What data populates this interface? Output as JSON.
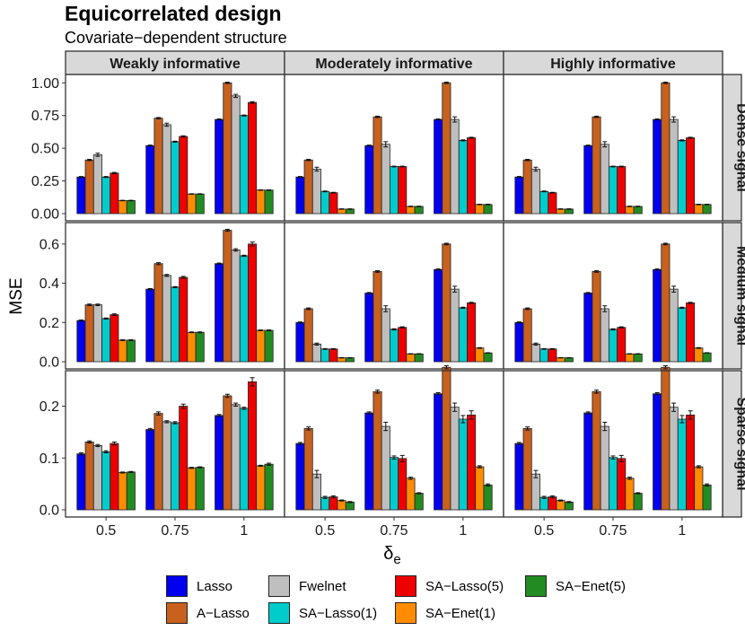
{
  "chart_data": {
    "type": "bar",
    "title": "Equicorrelated design",
    "subtitle": "Covariate−dependent structure",
    "xlabel": "δ",
    "xlabel_subscript": "e",
    "ylabel": "MSE",
    "categories": [
      "0.5",
      "0.75",
      "1"
    ],
    "columns": [
      "Weakly informative",
      "Moderately informative",
      "Highly informative"
    ],
    "rows": [
      {
        "label": "Dense signal",
        "ylim": [
          0,
          1.05
        ],
        "ticks": [
          0.0,
          0.25,
          0.5,
          0.75,
          1.0
        ],
        "tick_labels": [
          "0.00",
          "0.25",
          "0.50",
          "0.75",
          "1.00"
        ]
      },
      {
        "label": "Medium signal",
        "ylim": [
          0,
          0.7
        ],
        "ticks": [
          0.0,
          0.2,
          0.4,
          0.6
        ],
        "tick_labels": [
          "0.0",
          "0.2",
          "0.4",
          "0.6"
        ]
      },
      {
        "label": "Sparse signal",
        "ylim": [
          0,
          0.265
        ],
        "ticks": [
          0.0,
          0.1,
          0.2
        ],
        "tick_labels": [
          "0.0",
          "0.1",
          "0.2"
        ]
      }
    ],
    "series": [
      {
        "name": "Lasso",
        "color": "#0000f0"
      },
      {
        "name": "A−Lasso",
        "color": "#c8601e"
      },
      {
        "name": "Fwelnet",
        "color": "#bfbfbf"
      },
      {
        "name": "SA−Lasso(1)",
        "color": "#00cccc"
      },
      {
        "name": "SA−Lasso(5)",
        "color": "#ee0000"
      },
      {
        "name": "SA−Enet(1)",
        "color": "#ff8c00"
      },
      {
        "name": "SA−Enet(5)",
        "color": "#228b22"
      }
    ],
    "panels": [
      [
        {
          "values": [
            [
              0.28,
              0.41,
              0.45,
              0.28,
              0.31,
              0.1,
              0.1
            ],
            [
              0.52,
              0.73,
              0.68,
              0.55,
              0.59,
              0.15,
              0.15
            ],
            [
              0.72,
              1.0,
              0.9,
              0.75,
              0.85,
              0.18,
              0.18
            ]
          ],
          "errors": [
            [
              0.004,
              0.005,
              0.012,
              0.004,
              0.005,
              0.002,
              0.002
            ],
            [
              0.004,
              0.005,
              0.012,
              0.004,
              0.005,
              0.002,
              0.002
            ],
            [
              0.004,
              0.005,
              0.012,
              0.004,
              0.006,
              0.002,
              0.002
            ]
          ]
        },
        {
          "values": [
            [
              0.28,
              0.41,
              0.34,
              0.17,
              0.16,
              0.035,
              0.035
            ],
            [
              0.52,
              0.74,
              0.53,
              0.36,
              0.36,
              0.055,
              0.055
            ],
            [
              0.72,
              1.0,
              0.72,
              0.56,
              0.58,
              0.07,
              0.07
            ]
          ],
          "errors": [
            [
              0.004,
              0.005,
              0.015,
              0.003,
              0.003,
              0.002,
              0.002
            ],
            [
              0.004,
              0.005,
              0.02,
              0.003,
              0.003,
              0.002,
              0.002
            ],
            [
              0.004,
              0.005,
              0.02,
              0.004,
              0.004,
              0.002,
              0.002
            ]
          ]
        },
        {
          "values": [
            [
              0.28,
              0.41,
              0.34,
              0.17,
              0.16,
              0.035,
              0.035
            ],
            [
              0.52,
              0.74,
              0.53,
              0.36,
              0.36,
              0.055,
              0.055
            ],
            [
              0.72,
              1.0,
              0.72,
              0.56,
              0.58,
              0.07,
              0.07
            ]
          ],
          "errors": [
            [
              0.004,
              0.005,
              0.015,
              0.003,
              0.003,
              0.002,
              0.002
            ],
            [
              0.004,
              0.005,
              0.02,
              0.003,
              0.003,
              0.002,
              0.002
            ],
            [
              0.004,
              0.005,
              0.02,
              0.004,
              0.004,
              0.002,
              0.002
            ]
          ]
        }
      ],
      [
        {
          "values": [
            [
              0.21,
              0.29,
              0.29,
              0.22,
              0.24,
              0.11,
              0.11
            ],
            [
              0.37,
              0.5,
              0.44,
              0.38,
              0.43,
              0.15,
              0.15
            ],
            [
              0.5,
              0.67,
              0.57,
              0.54,
              0.6,
              0.16,
              0.16
            ]
          ],
          "errors": [
            [
              0.003,
              0.004,
              0.004,
              0.003,
              0.004,
              0.002,
              0.002
            ],
            [
              0.003,
              0.005,
              0.005,
              0.003,
              0.005,
              0.002,
              0.002
            ],
            [
              0.003,
              0.005,
              0.006,
              0.003,
              0.01,
              0.002,
              0.002
            ]
          ]
        },
        {
          "values": [
            [
              0.2,
              0.27,
              0.09,
              0.065,
              0.065,
              0.02,
              0.02
            ],
            [
              0.35,
              0.46,
              0.27,
              0.165,
              0.175,
              0.04,
              0.04
            ],
            [
              0.47,
              0.6,
              0.37,
              0.275,
              0.3,
              0.07,
              0.045
            ]
          ],
          "errors": [
            [
              0.003,
              0.004,
              0.005,
              0.002,
              0.002,
              0.001,
              0.001
            ],
            [
              0.003,
              0.004,
              0.015,
              0.003,
              0.003,
              0.001,
              0.001
            ],
            [
              0.003,
              0.004,
              0.015,
              0.003,
              0.003,
              0.002,
              0.001
            ]
          ]
        },
        {
          "values": [
            [
              0.2,
              0.27,
              0.09,
              0.065,
              0.065,
              0.02,
              0.02
            ],
            [
              0.35,
              0.46,
              0.27,
              0.165,
              0.175,
              0.04,
              0.04
            ],
            [
              0.47,
              0.6,
              0.37,
              0.275,
              0.3,
              0.07,
              0.045
            ]
          ],
          "errors": [
            [
              0.003,
              0.004,
              0.005,
              0.002,
              0.002,
              0.001,
              0.001
            ],
            [
              0.003,
              0.004,
              0.015,
              0.003,
              0.003,
              0.001,
              0.001
            ],
            [
              0.003,
              0.004,
              0.015,
              0.003,
              0.003,
              0.002,
              0.001
            ]
          ]
        }
      ],
      [
        {
          "values": [
            [
              0.108,
              0.131,
              0.124,
              0.112,
              0.128,
              0.072,
              0.073
            ],
            [
              0.155,
              0.186,
              0.17,
              0.168,
              0.2,
              0.081,
              0.082
            ],
            [
              0.182,
              0.22,
              0.203,
              0.196,
              0.247,
              0.085,
              0.088
            ]
          ],
          "errors": [
            [
              0.002,
              0.002,
              0.002,
              0.002,
              0.003,
              0.001,
              0.001
            ],
            [
              0.002,
              0.003,
              0.002,
              0.002,
              0.004,
              0.001,
              0.001
            ],
            [
              0.002,
              0.003,
              0.003,
              0.002,
              0.008,
              0.001,
              0.002
            ]
          ]
        },
        {
          "values": [
            [
              0.128,
              0.157,
              0.069,
              0.024,
              0.025,
              0.018,
              0.015
            ],
            [
              0.187,
              0.228,
              0.161,
              0.101,
              0.099,
              0.061,
              0.032
            ],
            [
              0.224,
              0.275,
              0.198,
              0.175,
              0.183,
              0.083,
              0.048
            ]
          ],
          "errors": [
            [
              0.002,
              0.003,
              0.007,
              0.002,
              0.002,
              0.001,
              0.001
            ],
            [
              0.002,
              0.003,
              0.008,
              0.003,
              0.006,
              0.002,
              0.001
            ],
            [
              0.002,
              0.003,
              0.008,
              0.007,
              0.008,
              0.002,
              0.002
            ]
          ]
        },
        {
          "values": [
            [
              0.128,
              0.157,
              0.069,
              0.024,
              0.025,
              0.018,
              0.015
            ],
            [
              0.187,
              0.228,
              0.161,
              0.101,
              0.099,
              0.061,
              0.032
            ],
            [
              0.224,
              0.275,
              0.198,
              0.175,
              0.183,
              0.083,
              0.048
            ]
          ],
          "errors": [
            [
              0.002,
              0.003,
              0.007,
              0.002,
              0.002,
              0.001,
              0.001
            ],
            [
              0.002,
              0.003,
              0.008,
              0.003,
              0.006,
              0.002,
              0.001
            ],
            [
              0.002,
              0.003,
              0.008,
              0.007,
              0.008,
              0.002,
              0.002
            ]
          ]
        }
      ]
    ]
  }
}
